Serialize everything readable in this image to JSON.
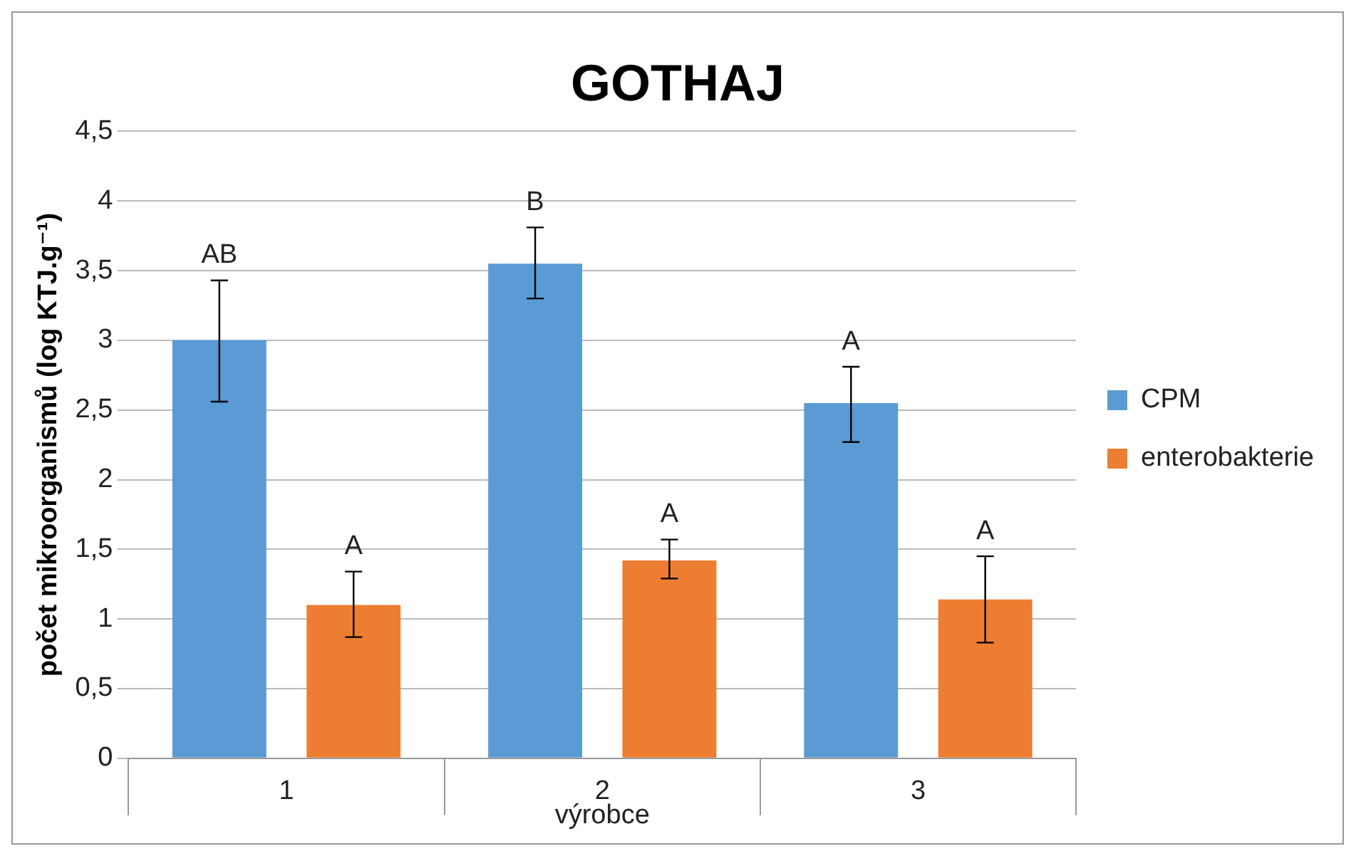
{
  "chart_data": {
    "type": "bar",
    "title": "GOTHAJ",
    "xlabel": "výrobce",
    "ylabel": "počet mikroorganismů (log KTJ.g⁻¹)",
    "categories": [
      "1",
      "2",
      "3"
    ],
    "series": [
      {
        "name": "CPM",
        "color": "#5b9bd5",
        "values": [
          3.0,
          3.55,
          2.55
        ],
        "errors": [
          [
            2.56,
            3.43
          ],
          [
            3.3,
            3.81
          ],
          [
            2.27,
            2.81
          ]
        ],
        "value_labels": [
          "AB",
          "B",
          "A"
        ]
      },
      {
        "name": "enterobakterie",
        "color": "#ed7d31",
        "values": [
          1.1,
          1.42,
          1.14
        ],
        "errors": [
          [
            0.87,
            1.34
          ],
          [
            1.29,
            1.57
          ],
          [
            0.83,
            1.45
          ]
        ],
        "value_labels": [
          "A",
          "A",
          "A"
        ]
      }
    ],
    "ylim": [
      0,
      4.5
    ],
    "yticks": [
      {
        "value": 0,
        "label": "0"
      },
      {
        "value": 0.5,
        "label": "0,5"
      },
      {
        "value": 1,
        "label": "1"
      },
      {
        "value": 1.5,
        "label": "1,5"
      },
      {
        "value": 2,
        "label": "2"
      },
      {
        "value": 2.5,
        "label": "2,5"
      },
      {
        "value": 3,
        "label": "3"
      },
      {
        "value": 3.5,
        "label": "3,5"
      },
      {
        "value": 4,
        "label": "4"
      },
      {
        "value": 4.5,
        "label": "4,5"
      }
    ],
    "grid": "y",
    "legend": "right"
  }
}
